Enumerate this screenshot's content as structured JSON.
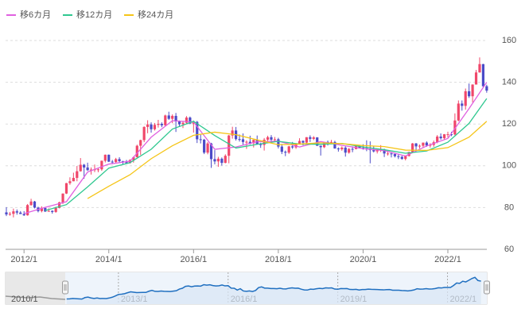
{
  "chart_data": {
    "type": "candlestick",
    "x": [
      "2011/8",
      "2011/9",
      "2011/10",
      "2011/11",
      "2011/12",
      "2012/1",
      "2012/2",
      "2012/3",
      "2012/4",
      "2012/5",
      "2012/6",
      "2012/7",
      "2012/8",
      "2012/9",
      "2012/10",
      "2012/11",
      "2012/12",
      "2013/1",
      "2013/2",
      "2013/3",
      "2013/4",
      "2013/5",
      "2013/6",
      "2013/7",
      "2013/8",
      "2013/9",
      "2013/10",
      "2013/11",
      "2013/12",
      "2014/1",
      "2014/2",
      "2014/3",
      "2014/4",
      "2014/5",
      "2014/6",
      "2014/7",
      "2014/8",
      "2014/9",
      "2014/10",
      "2014/11",
      "2014/12",
      "2015/1",
      "2015/2",
      "2015/3",
      "2015/4",
      "2015/5",
      "2015/6",
      "2015/7",
      "2015/8",
      "2015/9",
      "2015/10",
      "2015/11",
      "2015/12",
      "2016/1",
      "2016/2",
      "2016/3",
      "2016/4",
      "2016/5",
      "2016/6",
      "2016/7",
      "2016/8",
      "2016/9",
      "2016/10",
      "2016/11",
      "2016/12",
      "2017/1",
      "2017/2",
      "2017/3",
      "2017/4",
      "2017/5",
      "2017/6",
      "2017/7",
      "2017/8",
      "2017/9",
      "2017/10",
      "2017/11",
      "2017/12",
      "2018/1",
      "2018/2",
      "2018/3",
      "2018/4",
      "2018/5",
      "2018/6",
      "2018/7",
      "2018/8",
      "2018/9",
      "2018/10",
      "2018/11",
      "2018/12",
      "2019/1",
      "2019/2",
      "2019/3",
      "2019/4",
      "2019/5",
      "2019/6",
      "2019/7",
      "2019/8",
      "2019/9",
      "2019/10",
      "2019/11",
      "2019/12",
      "2020/1",
      "2020/2",
      "2020/3",
      "2020/4",
      "2020/5",
      "2020/6",
      "2020/7",
      "2020/8",
      "2020/9",
      "2020/10",
      "2020/11",
      "2020/12",
      "2021/1",
      "2021/2",
      "2021/3",
      "2021/4",
      "2021/5",
      "2021/6",
      "2021/7",
      "2021/8",
      "2021/9",
      "2021/10",
      "2021/11",
      "2021/12",
      "2022/1",
      "2022/2",
      "2022/3",
      "2022/4",
      "2022/5",
      "2022/6",
      "2022/7",
      "2022/8",
      "2022/9",
      "2022/10",
      "2022/11",
      "2022/12"
    ],
    "ohlc": [
      [
        77.7,
        80.2,
        75.9,
        76.7
      ],
      [
        76.7,
        77.9,
        76.1,
        77.0
      ],
      [
        77.0,
        79.5,
        75.3,
        78.2
      ],
      [
        78.2,
        79.1,
        76.6,
        77.6
      ],
      [
        77.6,
        78.3,
        77.0,
        76.9
      ],
      [
        76.9,
        78.3,
        76.0,
        76.3
      ],
      [
        76.3,
        81.7,
        76.1,
        81.2
      ],
      [
        81.2,
        84.2,
        80.9,
        82.9
      ],
      [
        82.9,
        83.2,
        79.6,
        80.0
      ],
      [
        80.0,
        80.4,
        77.7,
        78.3
      ],
      [
        78.3,
        80.6,
        77.7,
        79.8
      ],
      [
        79.8,
        79.9,
        77.9,
        78.1
      ],
      [
        78.1,
        79.6,
        78.0,
        78.4
      ],
      [
        78.4,
        78.7,
        77.1,
        77.9
      ],
      [
        77.9,
        80.4,
        77.5,
        79.8
      ],
      [
        79.8,
        82.8,
        79.6,
        82.5
      ],
      [
        82.5,
        86.8,
        81.7,
        86.7
      ],
      [
        86.7,
        91.8,
        86.5,
        91.7
      ],
      [
        91.7,
        94.5,
        90.9,
        92.6
      ],
      [
        92.6,
        96.7,
        92.6,
        94.2
      ],
      [
        94.2,
        99.9,
        92.6,
        97.4
      ],
      [
        97.4,
        103.7,
        97.2,
        100.5
      ],
      [
        100.5,
        100.9,
        93.8,
        99.2
      ],
      [
        99.2,
        101.5,
        97.6,
        97.9
      ],
      [
        97.9,
        99.2,
        95.8,
        98.2
      ],
      [
        98.2,
        100.6,
        97.0,
        98.3
      ],
      [
        98.3,
        99.0,
        96.9,
        98.3
      ],
      [
        98.3,
        102.5,
        97.6,
        102.4
      ],
      [
        102.4,
        105.4,
        101.6,
        105.3
      ],
      [
        105.3,
        105.4,
        101.8,
        102.0
      ],
      [
        102.0,
        102.8,
        100.8,
        101.8
      ],
      [
        101.8,
        103.8,
        101.2,
        103.2
      ],
      [
        103.2,
        104.1,
        101.4,
        102.2
      ],
      [
        102.2,
        102.4,
        100.8,
        101.8
      ],
      [
        101.8,
        102.8,
        101.1,
        101.3
      ],
      [
        101.3,
        103.1,
        101.1,
        102.8
      ],
      [
        102.8,
        104.5,
        101.5,
        104.1
      ],
      [
        104.1,
        110.1,
        104.0,
        109.6
      ],
      [
        109.6,
        112.5,
        105.2,
        112.3
      ],
      [
        112.3,
        118.9,
        111.3,
        118.6
      ],
      [
        118.6,
        121.8,
        115.6,
        119.8
      ],
      [
        119.8,
        120.8,
        115.9,
        117.5
      ],
      [
        117.5,
        120.5,
        116.9,
        119.6
      ],
      [
        119.6,
        122.0,
        118.3,
        120.1
      ],
      [
        120.1,
        120.8,
        118.5,
        119.4
      ],
      [
        119.4,
        124.5,
        118.9,
        124.1
      ],
      [
        124.1,
        125.9,
        122.0,
        122.5
      ],
      [
        122.5,
        124.6,
        120.4,
        123.9
      ],
      [
        123.9,
        125.3,
        116.2,
        121.2
      ],
      [
        121.2,
        121.7,
        118.6,
        119.9
      ],
      [
        119.9,
        121.5,
        118.1,
        120.6
      ],
      [
        120.6,
        123.8,
        120.2,
        123.1
      ],
      [
        123.1,
        123.6,
        119.9,
        120.2
      ],
      [
        120.2,
        121.7,
        115.9,
        121.0
      ],
      [
        121.0,
        121.5,
        110.9,
        112.7
      ],
      [
        112.7,
        114.9,
        110.7,
        112.5
      ],
      [
        112.5,
        112.9,
        105.6,
        106.3
      ],
      [
        106.3,
        111.4,
        105.5,
        110.7
      ],
      [
        110.7,
        111.0,
        99.0,
        103.2
      ],
      [
        103.2,
        107.5,
        100.7,
        102.1
      ],
      [
        102.1,
        104.3,
        99.5,
        103.4
      ],
      [
        103.4,
        104.0,
        100.1,
        101.4
      ],
      [
        101.4,
        105.5,
        101.2,
        104.8
      ],
      [
        104.8,
        114.8,
        101.2,
        114.5
      ],
      [
        114.5,
        118.7,
        113.0,
        116.9
      ],
      [
        116.9,
        118.6,
        112.1,
        112.8
      ],
      [
        112.8,
        115.0,
        111.6,
        112.7
      ],
      [
        112.7,
        115.5,
        110.1,
        111.4
      ],
      [
        111.4,
        112.2,
        108.1,
        111.5
      ],
      [
        111.5,
        114.4,
        110.2,
        110.8
      ],
      [
        110.8,
        112.5,
        108.8,
        112.4
      ],
      [
        112.4,
        114.5,
        110.2,
        110.3
      ],
      [
        110.3,
        111.0,
        108.6,
        110.0
      ],
      [
        110.0,
        113.3,
        107.3,
        112.5
      ],
      [
        112.5,
        114.4,
        111.7,
        113.7
      ],
      [
        113.7,
        114.7,
        110.8,
        112.5
      ],
      [
        112.5,
        113.8,
        111.4,
        112.7
      ],
      [
        112.7,
        113.4,
        108.3,
        109.2
      ],
      [
        109.2,
        110.5,
        105.6,
        106.7
      ],
      [
        106.7,
        107.3,
        104.6,
        106.3
      ],
      [
        106.3,
        109.6,
        105.7,
        109.3
      ],
      [
        109.3,
        111.4,
        108.1,
        108.8
      ],
      [
        108.8,
        110.9,
        108.1,
        110.7
      ],
      [
        110.7,
        113.2,
        110.3,
        111.9
      ],
      [
        111.9,
        112.2,
        109.8,
        111.1
      ],
      [
        111.1,
        113.7,
        110.4,
        113.7
      ],
      [
        113.7,
        114.6,
        111.4,
        112.9
      ],
      [
        112.9,
        114.2,
        112.3,
        113.6
      ],
      [
        113.6,
        113.7,
        109.5,
        109.6
      ],
      [
        109.6,
        109.7,
        104.9,
        108.9
      ],
      [
        108.9,
        111.5,
        108.5,
        111.4
      ],
      [
        111.4,
        112.1,
        109.7,
        110.9
      ],
      [
        110.9,
        112.4,
        110.8,
        111.4
      ],
      [
        111.4,
        112.0,
        108.2,
        108.3
      ],
      [
        108.3,
        108.8,
        106.8,
        107.9
      ],
      [
        107.9,
        109.3,
        107.2,
        108.7
      ],
      [
        108.7,
        109.3,
        104.4,
        106.3
      ],
      [
        106.3,
        108.5,
        105.8,
        108.1
      ],
      [
        108.1,
        109.3,
        106.5,
        108.0
      ],
      [
        108.0,
        109.7,
        107.9,
        109.5
      ],
      [
        109.5,
        109.7,
        108.4,
        108.6
      ],
      [
        108.6,
        110.3,
        107.7,
        108.4
      ],
      [
        108.4,
        112.2,
        107.0,
        107.9
      ],
      [
        107.9,
        111.7,
        101.2,
        107.5
      ],
      [
        107.5,
        109.4,
        106.4,
        106.9
      ],
      [
        106.9,
        108.1,
        105.9,
        107.8
      ],
      [
        107.8,
        109.9,
        106.6,
        107.9
      ],
      [
        107.9,
        108.2,
        104.2,
        105.9
      ],
      [
        105.9,
        107.1,
        104.9,
        105.9
      ],
      [
        105.9,
        106.6,
        104.0,
        105.6
      ],
      [
        105.6,
        106.1,
        104.0,
        104.6
      ],
      [
        104.6,
        105.7,
        103.2,
        104.3
      ],
      [
        104.3,
        104.8,
        102.9,
        103.3
      ],
      [
        103.3,
        104.9,
        102.6,
        104.7
      ],
      [
        104.7,
        106.7,
        104.4,
        106.6
      ],
      [
        106.6,
        110.9,
        106.4,
        110.7
      ],
      [
        110.7,
        110.9,
        107.5,
        109.3
      ],
      [
        109.3,
        110.2,
        108.3,
        109.6
      ],
      [
        109.6,
        111.1,
        108.6,
        111.1
      ],
      [
        111.1,
        111.7,
        109.1,
        109.7
      ],
      [
        109.7,
        110.8,
        108.7,
        110.0
      ],
      [
        110.0,
        112.1,
        109.1,
        111.3
      ],
      [
        111.3,
        114.7,
        110.8,
        114.0
      ],
      [
        114.0,
        115.5,
        112.5,
        113.2
      ],
      [
        113.2,
        115.2,
        112.6,
        115.1
      ],
      [
        115.1,
        116.3,
        113.5,
        115.1
      ],
      [
        115.1,
        116.3,
        114.2,
        115.0
      ],
      [
        115.0,
        125.1,
        114.6,
        121.7
      ],
      [
        121.7,
        131.3,
        121.3,
        129.8
      ],
      [
        129.8,
        131.3,
        126.4,
        128.7
      ],
      [
        128.7,
        137.0,
        126.9,
        135.7
      ],
      [
        135.7,
        139.4,
        132.5,
        133.3
      ],
      [
        133.3,
        139.0,
        130.4,
        138.9
      ],
      [
        138.9,
        145.9,
        138.9,
        144.7
      ],
      [
        144.7,
        151.9,
        144.6,
        148.7
      ],
      [
        148.7,
        148.8,
        137.5,
        138.1
      ],
      [
        138.1,
        138.8,
        135.0,
        136.0
      ]
    ],
    "up_color": "#f0476a",
    "down_color": "#4b4bc8",
    "series": [
      {
        "name": "移6カ月",
        "color": "#e060e0",
        "x": [
          "2012/1",
          "2012/7",
          "2013/1",
          "2013/7",
          "2014/1",
          "2014/7",
          "2015/1",
          "2015/7",
          "2016/1",
          "2016/7",
          "2017/1",
          "2017/7",
          "2018/1",
          "2018/7",
          "2019/1",
          "2019/7",
          "2020/1",
          "2020/7",
          "2021/1",
          "2021/7",
          "2022/1",
          "2022/7",
          "2022/12"
        ],
        "values": [
          77.1,
          80.1,
          82.8,
          97.0,
          100.8,
          102.2,
          113.7,
          121.6,
          121.0,
          107.9,
          109.0,
          111.5,
          111.8,
          109.0,
          111.6,
          109.8,
          108.2,
          107.3,
          104.7,
          109.5,
          113.1,
          127.4,
          140.0
        ]
      },
      {
        "name": "移12カ月",
        "color": "#30c890",
        "x": [
          "2012/7",
          "2013/1",
          "2013/7",
          "2014/1",
          "2014/7",
          "2015/1",
          "2015/7",
          "2016/1",
          "2016/7",
          "2017/1",
          "2017/7",
          "2018/1",
          "2018/7",
          "2019/1",
          "2019/7",
          "2020/1",
          "2020/7",
          "2021/1",
          "2021/7",
          "2022/1",
          "2022/7",
          "2022/12"
        ],
        "values": [
          78.6,
          81.4,
          89.9,
          98.9,
          101.5,
          107.9,
          117.6,
          121.3,
          114.5,
          108.5,
          110.3,
          111.7,
          110.4,
          110.3,
          110.7,
          109.0,
          107.7,
          106.0,
          107.1,
          111.3,
          120.3,
          132.2
        ]
      },
      {
        "name": "移24カ月",
        "color": "#f5c518",
        "x": [
          "2013/7",
          "2014/1",
          "2014/7",
          "2015/1",
          "2015/7",
          "2016/1",
          "2016/7",
          "2017/1",
          "2017/7",
          "2018/1",
          "2018/7",
          "2019/1",
          "2019/7",
          "2020/1",
          "2020/7",
          "2021/1",
          "2021/7",
          "2022/1",
          "2022/7",
          "2022/12"
        ],
        "values": [
          84.3,
          90.2,
          95.7,
          103.4,
          109.6,
          114.6,
          116.1,
          114.9,
          112.4,
          110.1,
          110.4,
          111.0,
          110.6,
          109.7,
          109.2,
          107.5,
          107.4,
          108.7,
          113.7,
          121.3
        ]
      }
    ],
    "ylim": [
      60,
      160
    ],
    "yticks": [
      60,
      80,
      100,
      120,
      140,
      160
    ],
    "grid": true,
    "xticks": [
      "2012/1",
      "2014/1",
      "2016/1",
      "2018/1",
      "2020/1",
      "2022/1"
    ],
    "navigator": {
      "xticks": [
        "2010/1",
        "2013/1",
        "2016/1",
        "2019/1",
        "2022/1"
      ]
    }
  }
}
